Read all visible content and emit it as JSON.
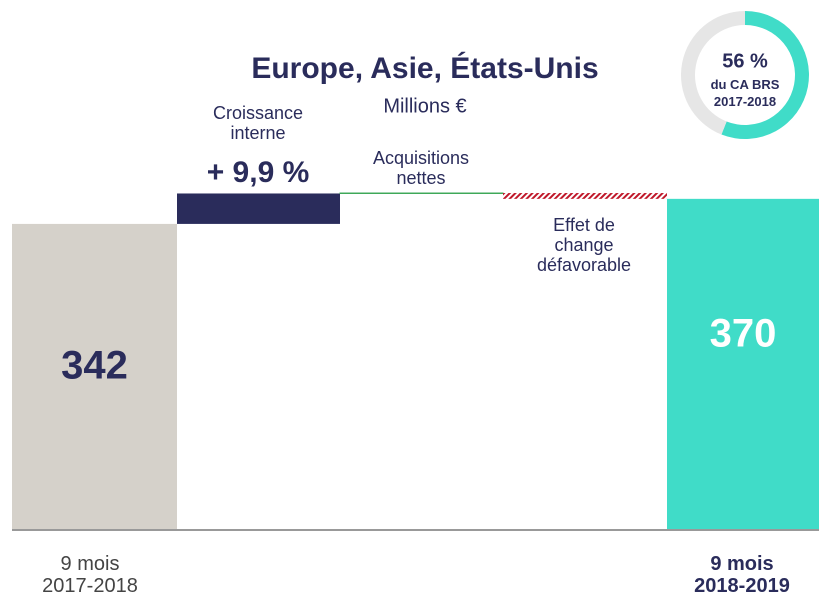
{
  "chart_data": {
    "type": "waterfall",
    "title": "Europe, Asie, États-Unis",
    "subtitle": "Millions €",
    "categories": [
      "9 mois\n2017-2018",
      "Croissance\ninterne",
      "Acquisitions\nnettes",
      "Effet de\nchange\ndéfavorable",
      "9 mois\n2018-2019"
    ],
    "measure": [
      "absolute",
      "relative",
      "relative",
      "relative",
      "absolute"
    ],
    "values": [
      342,
      34,
      0.5,
      -6.5,
      370
    ],
    "colors": [
      "#d5d1ca",
      "#2a2c5b",
      "#3aa655",
      "#c0182a",
      "#40dcc8"
    ],
    "value_labels": [
      "342",
      null,
      null,
      null,
      "370"
    ],
    "annotation": "+ 9,9 %",
    "ylim": [
      0,
      400
    ],
    "share": {
      "type": "pie",
      "values": [
        56,
        44
      ],
      "value_labels": [
        "56 %",
        null
      ],
      "colors": [
        "#40dcc8",
        "#e6e6e6"
      ],
      "text": "du CA BRS\n2017-2018"
    }
  }
}
